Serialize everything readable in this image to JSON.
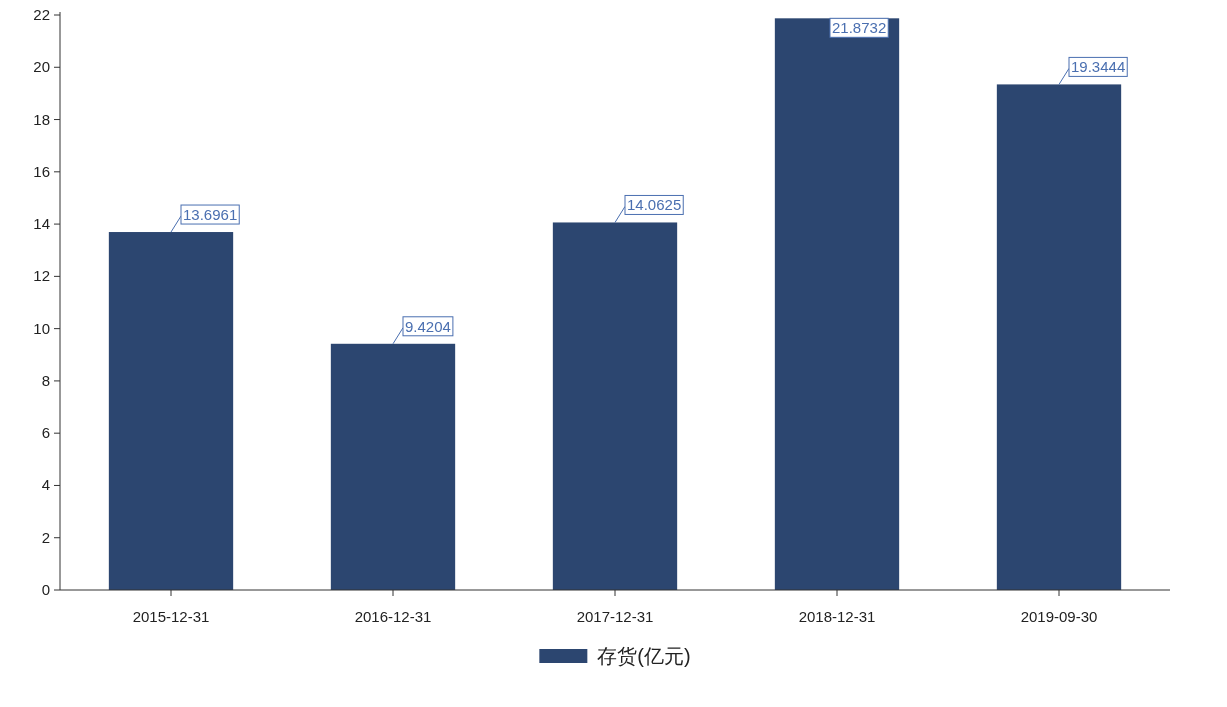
{
  "chart_data": {
    "type": "bar",
    "categories": [
      "2015-12-31",
      "2016-12-31",
      "2017-12-31",
      "2018-12-31",
      "2019-09-30"
    ],
    "series": [
      {
        "name": "存货(亿元)",
        "color": "#2c4670",
        "values": [
          13.6961,
          9.4204,
          14.0625,
          21.8732,
          19.3444
        ]
      }
    ],
    "ylim": [
      0,
      22
    ],
    "yticks": [
      0,
      2,
      4,
      6,
      8,
      10,
      12,
      14,
      16,
      18,
      20,
      22
    ],
    "data_labels": true,
    "legend": "bottom",
    "grid": false
  }
}
